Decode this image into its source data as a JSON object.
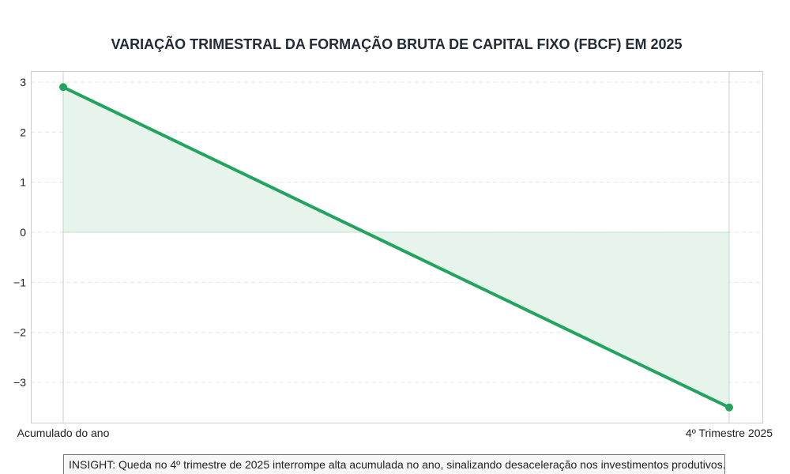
{
  "chart_data": {
    "type": "line",
    "title": "VARIAÇÃO TRIMESTRAL DA FORMAÇÃO BRUTA DE CAPITAL FIXO (FBCF) EM 2025",
    "xlabel": "",
    "ylabel": "",
    "categories": [
      "Acumulado do ano",
      "4º Trimestre 2025"
    ],
    "values": [
      2.9,
      -3.5
    ],
    "ylim": [
      -3.82,
      3.22
    ],
    "yticks": [
      -3,
      -2,
      -1,
      0,
      1,
      2,
      3
    ],
    "ytick_labels": [
      "−3",
      "−2",
      "−1",
      "0",
      "1",
      "2",
      "3"
    ],
    "grid": true,
    "fill_to_zero": true,
    "colors": {
      "line": "#22a35f",
      "fill": "#e6f4ec",
      "grid": "#e6e6e6"
    }
  },
  "insight": "INSIGHT: Queda no 4º trimestre de 2025 interrompe alta acumulada no ano, sinalizando desaceleração nos investimentos produtivos."
}
